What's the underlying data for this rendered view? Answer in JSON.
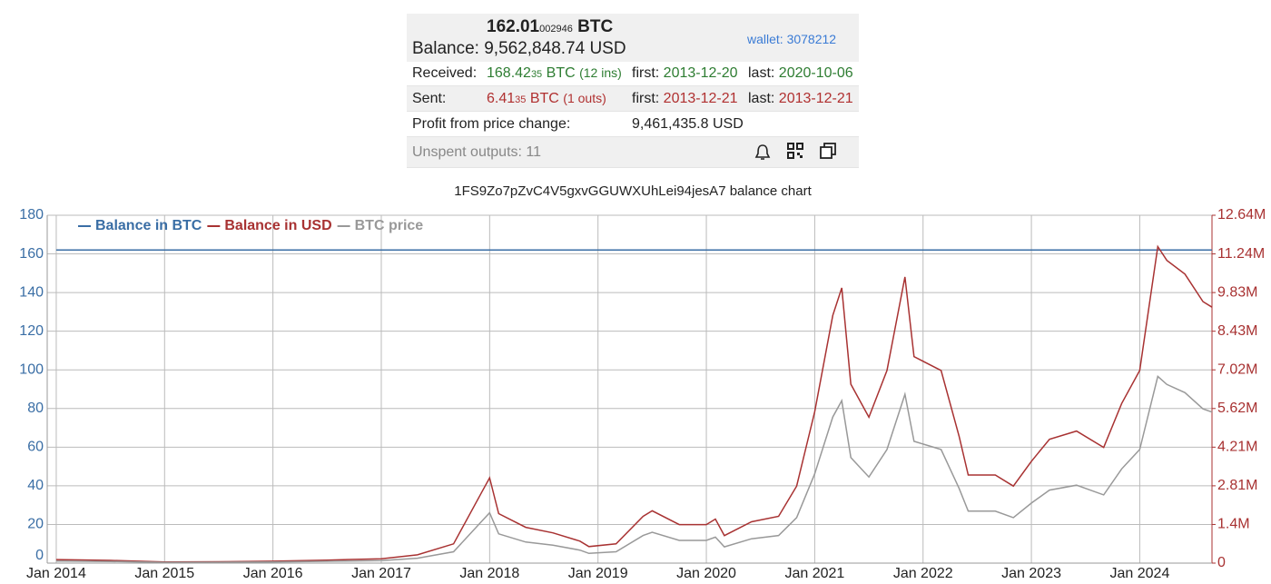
{
  "wallet": {
    "balance_btc_main": "162.01",
    "balance_btc_small": "002946",
    "balance_btc_unit": "BTC",
    "balance_label": "Balance:",
    "balance_usd": "9,562,848.74 USD",
    "wallet_link": "wallet: 3078212",
    "received": {
      "label": "Received:",
      "main": "168.42",
      "small": "35",
      "unit": "BTC",
      "count": "(12 ins)",
      "first_label": "first:",
      "first": "2013-12-20",
      "last_label": "last:",
      "last": "2020-10-06"
    },
    "sent": {
      "label": "Sent:",
      "main": "6.41",
      "small": "35",
      "unit": "BTC",
      "count": "(1 outs)",
      "first_label": "first:",
      "first": "2013-12-21",
      "last_label": "last:",
      "last": "2013-12-21"
    },
    "profit": {
      "label": "Profit from price change:",
      "value": "9,461,435.8 USD"
    },
    "unspent": "Unspent outputs: 11"
  },
  "chart_data": {
    "type": "line",
    "title": "1FS9Zo7pZvC4V5gxvGGUWXUhLei94jesA7 balance chart",
    "x": [
      "2014-01",
      "2014-07",
      "2015-01",
      "2015-07",
      "2016-01",
      "2016-07",
      "2017-01",
      "2017-05",
      "2017-09",
      "2017-12",
      "2018-01",
      "2018-02",
      "2018-05",
      "2018-08",
      "2018-11",
      "2018-12",
      "2019-03",
      "2019-06",
      "2019-07",
      "2019-10",
      "2020-01",
      "2020-02",
      "2020-03",
      "2020-06",
      "2020-09",
      "2020-11",
      "2021-01",
      "2021-03",
      "2021-04",
      "2021-05",
      "2021-07",
      "2021-09",
      "2021-11",
      "2021-12",
      "2022-03",
      "2022-05",
      "2022-06",
      "2022-09",
      "2022-11",
      "2023-01",
      "2023-03",
      "2023-06",
      "2023-09",
      "2023-11",
      "2024-01",
      "2024-03",
      "2024-04",
      "2024-06",
      "2024-08",
      "2024-09"
    ],
    "series": [
      {
        "name": "Balance in BTC",
        "color": "#3a6ea5",
        "axis": "y",
        "values": [
          162.01,
          162.01,
          162.01,
          162.01,
          162.01,
          162.01,
          162.01,
          162.01,
          162.01,
          162.01,
          162.01,
          162.01,
          162.01,
          162.01,
          162.01,
          162.01,
          162.01,
          162.01,
          162.01,
          162.01,
          162.01,
          162.01,
          162.01,
          162.01,
          162.01,
          162.01,
          162.01,
          162.01,
          162.01,
          162.01,
          162.01,
          162.01,
          162.01,
          162.01,
          162.01,
          162.01,
          162.01,
          162.01,
          162.01,
          162.01,
          162.01,
          162.01,
          162.01,
          162.01,
          162.01,
          162.01,
          162.01,
          162.01,
          162.01,
          162.01
        ]
      },
      {
        "name": "Balance in USD",
        "color": "#a83232",
        "axis": "y2",
        "values": [
          130000,
          100000,
          40000,
          50000,
          70000,
          110000,
          160000,
          300000,
          700000,
          2500000,
          3100000,
          1800000,
          1300000,
          1100000,
          800000,
          600000,
          700000,
          1700000,
          1900000,
          1400000,
          1400000,
          1600000,
          1000000,
          1500000,
          1700000,
          2800000,
          5500000,
          9000000,
          10000000,
          6500000,
          5300000,
          7000000,
          10400000,
          7500000,
          7000000,
          4600000,
          3200000,
          3200000,
          2800000,
          3700000,
          4500000,
          4800000,
          4200000,
          5800000,
          7000000,
          11500000,
          11000000,
          10500000,
          9500000,
          9300000
        ]
      },
      {
        "name": "BTC price",
        "color": "#999999",
        "axis": "y2",
        "values": [
          77000,
          59000,
          24000,
          30000,
          41000,
          65000,
          94000,
          177000,
          413000,
          1475000,
          1829000,
          1062000,
          767000,
          649000,
          472000,
          354000,
          413000,
          1003000,
          1121000,
          826000,
          826000,
          944000,
          590000,
          885000,
          1003000,
          1652000,
          3245000,
          5310000,
          5900000,
          3835000,
          3127000,
          4130000,
          6136000,
          4425000,
          4130000,
          2714000,
          1888000,
          1888000,
          1652000,
          2183000,
          2655000,
          2832000,
          2478000,
          3422000,
          4130000,
          6785000,
          6490000,
          6195000,
          5605000,
          5487000
        ]
      }
    ],
    "xlim": [
      "2013-12",
      "2024-09"
    ],
    "xticks": [
      {
        "value": "2014-01",
        "label": "Jan 2014"
      },
      {
        "value": "2015-01",
        "label": "Jan 2015"
      },
      {
        "value": "2016-01",
        "label": "Jan 2016"
      },
      {
        "value": "2017-01",
        "label": "Jan 2017"
      },
      {
        "value": "2018-01",
        "label": "Jan 2018"
      },
      {
        "value": "2019-01",
        "label": "Jan 2019"
      },
      {
        "value": "2020-01",
        "label": "Jan 2020"
      },
      {
        "value": "2021-01",
        "label": "Jan 2021"
      },
      {
        "value": "2022-01",
        "label": "Jan 2022"
      },
      {
        "value": "2023-01",
        "label": "Jan 2023"
      },
      {
        "value": "2024-01",
        "label": "Jan 2024"
      }
    ],
    "ylim": [
      0,
      180
    ],
    "yticks": [
      0,
      20,
      40,
      60,
      80,
      100,
      120,
      140,
      160,
      180
    ],
    "y2lim": [
      0,
      12640000
    ],
    "y2ticks": [
      0,
      {
        "value": 1404444,
        "label": "1.4M"
      },
      {
        "value": 2808889,
        "label": "2.81M"
      },
      {
        "value": 4213333,
        "label": "4.21M"
      },
      {
        "value": 5617778,
        "label": "5.62M"
      },
      {
        "value": 7022222,
        "label": "7.02M"
      },
      {
        "value": 8426667,
        "label": "8.43M"
      },
      {
        "value": 9831111,
        "label": "9.83M"
      },
      {
        "value": 11235556,
        "label": "11.24M"
      },
      {
        "value": 12640000,
        "label": "12.64M"
      }
    ],
    "grid": true,
    "legend": "top-left"
  }
}
